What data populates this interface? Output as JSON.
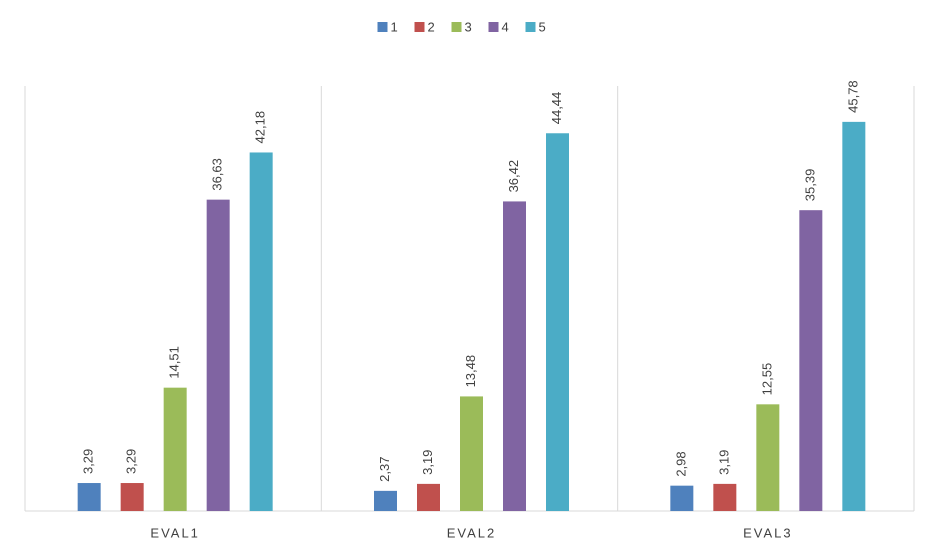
{
  "chart_data": {
    "type": "bar",
    "categories": [
      "EVAL1",
      "EVAL2",
      "EVAL3"
    ],
    "series": [
      {
        "name": "1",
        "color": "#4f81bd",
        "values": [
          3.29,
          2.37,
          2.98
        ],
        "value_labels": [
          "3,29",
          "2,37",
          "2,98"
        ]
      },
      {
        "name": "2",
        "color": "#c0504d",
        "values": [
          3.29,
          3.19,
          3.19
        ],
        "value_labels": [
          "3,29",
          "3,19",
          "3,19"
        ]
      },
      {
        "name": "3",
        "color": "#9bbb59",
        "values": [
          14.51,
          13.48,
          12.55
        ],
        "value_labels": [
          "14,51",
          "13,48",
          "12,55"
        ]
      },
      {
        "name": "4",
        "color": "#8064a2",
        "values": [
          36.63,
          36.42,
          35.39
        ],
        "value_labels": [
          "36,63",
          "36,42",
          "35,39"
        ]
      },
      {
        "name": "5",
        "color": "#4bacc6",
        "values": [
          42.18,
          44.44,
          45.78
        ],
        "value_labels": [
          "42,18",
          "44,44",
          "45,78"
        ]
      }
    ],
    "ylim": [
      0,
      50
    ],
    "legend": "top"
  }
}
